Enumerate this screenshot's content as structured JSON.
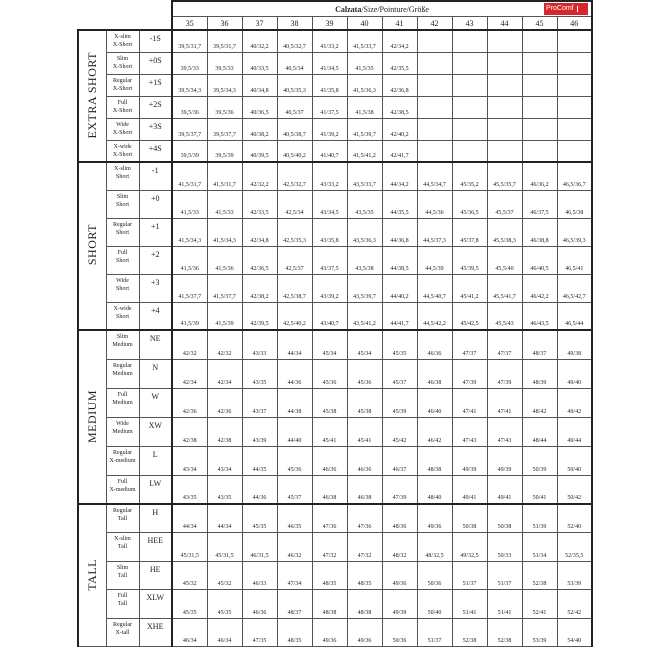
{
  "header": {
    "title_bold": "Calzata",
    "title_rest": "/Size/Pointure/Größe",
    "logo": "ProComf",
    "sizes": [
      "35",
      "36",
      "37",
      "38",
      "39",
      "40",
      "41",
      "42",
      "43",
      "44",
      "45",
      "46"
    ]
  },
  "accent_color": "#d8262e",
  "groups": [
    {
      "label": "EXTRA SHORT",
      "rows": [
        {
          "name": [
            "X-slim",
            "X-Short"
          ],
          "code": "-1S",
          "values": [
            "39,5/31,7",
            "39,5/31,7",
            "40/32,2",
            "40,5/32,7",
            "41/33,2",
            "41,5/33,7",
            "42/34,2",
            "",
            "",
            "",
            "",
            ""
          ]
        },
        {
          "name": [
            "Slim",
            "X-Short"
          ],
          "code": "+0S",
          "values": [
            "39,5/33",
            "39,5/33",
            "40/33,5",
            "40,5/34",
            "41/34,5",
            "41,5/35",
            "42/35,5",
            "",
            "",
            "",
            "",
            ""
          ]
        },
        {
          "name": [
            "Regular",
            "X-Short"
          ],
          "code": "+1S",
          "values": [
            "39,5/34,3",
            "39,5/34,3",
            "40/34,8",
            "40,5/35,3",
            "41/35,8",
            "41,5/36,3",
            "42/36,8",
            "",
            "",
            "",
            "",
            ""
          ]
        },
        {
          "name": [
            "Full",
            "X-Short"
          ],
          "code": "+2S",
          "values": [
            "39,5/36",
            "39,5/36",
            "40/36,5",
            "40,5/37",
            "41/37,5",
            "41,5/38",
            "42/38,5",
            "",
            "",
            "",
            "",
            ""
          ]
        },
        {
          "name": [
            "Wide",
            "X-Short"
          ],
          "code": "+3S",
          "values": [
            "39,5/37,7",
            "39,5/37,7",
            "40/38,2",
            "40,5/38,7",
            "41/39,2",
            "41,5/39,7",
            "42/40,2",
            "",
            "",
            "",
            "",
            ""
          ]
        },
        {
          "name": [
            "X-wide",
            "X-Short"
          ],
          "code": "+4S",
          "values": [
            "39,5/39",
            "39,5/39",
            "40/39,5",
            "40,5/40,2",
            "41/40,7",
            "41,5/41,2",
            "42/41,7",
            "",
            "",
            "",
            "",
            ""
          ]
        }
      ]
    },
    {
      "label": "SHORT",
      "rows": [
        {
          "name": [
            "X-slim",
            "Short"
          ],
          "code": "-1",
          "values": [
            "41,5/31,7",
            "41,5/31,7",
            "42/32,2",
            "42,5/32,7",
            "43/33,2",
            "43,5/33,7",
            "44/34,2",
            "44,5/34,7",
            "45/35,2",
            "45,5/35,7",
            "46/36,2",
            "46,5/36,7"
          ]
        },
        {
          "name": [
            "Slim",
            "Short"
          ],
          "code": "+0",
          "values": [
            "41,5/33",
            "41,5/33",
            "42/33,5",
            "42,5/34",
            "43/34,5",
            "43,5/35",
            "44/35,5",
            "44,5/36",
            "45/36,5",
            "45,5/37",
            "46/37,5",
            "46,5/38"
          ]
        },
        {
          "name": [
            "Regular",
            "Short"
          ],
          "code": "+1",
          "values": [
            "41,5/34,3",
            "41,5/34,3",
            "42/34,8",
            "42,5/35,3",
            "43/35,8",
            "43,5/36,3",
            "44/36,8",
            "44,5/37,3",
            "45/37,8",
            "45,5/38,3",
            "46/38,8",
            "46,5/39,3"
          ]
        },
        {
          "name": [
            "Full",
            "Short"
          ],
          "code": "+2",
          "values": [
            "41,5/36",
            "41,5/36",
            "42/36,5",
            "42,5/37",
            "43/37,5",
            "43,5/38",
            "44/38,5",
            "44,5/39",
            "45/39,5",
            "45,5/40",
            "46/40,5",
            "46,5/41"
          ]
        },
        {
          "name": [
            "Wide",
            "Short"
          ],
          "code": "+3",
          "values": [
            "41,5/37,7",
            "41,5/37,7",
            "42/38,2",
            "42,5/38,7",
            "43/39,2",
            "43,5/39,7",
            "44/40,2",
            "44,5/40,7",
            "45/41,2",
            "45,5/41,7",
            "46/42,2",
            "46,5/42,7"
          ]
        },
        {
          "name": [
            "X-wide",
            "Short"
          ],
          "code": "+4",
          "values": [
            "41,5/39",
            "41,5/39",
            "42/39,5",
            "42,5/40,2",
            "43/40,7",
            "43,5/41,2",
            "44/41,7",
            "44,5/42,2",
            "45/42,5",
            "45,5/43",
            "46/43,5",
            "46,5/44"
          ]
        }
      ]
    },
    {
      "label": "MEDIUM",
      "rows": [
        {
          "name": [
            "Slim",
            "Medium"
          ],
          "code": "NE",
          "values": [
            "42/32",
            "42/32",
            "43/33",
            "44/34",
            "45/34",
            "45/34",
            "45/35",
            "46/36",
            "47/37",
            "47/37",
            "48/37",
            "49/38"
          ]
        },
        {
          "name": [
            "Regular",
            "Medium"
          ],
          "code": "N",
          "values": [
            "42/34",
            "42/34",
            "43/35",
            "44/36",
            "45/36",
            "45/36",
            "45/37",
            "46/38",
            "47/39",
            "47/39",
            "48/39",
            "49/40"
          ]
        },
        {
          "name": [
            "Full",
            "Medium"
          ],
          "code": "W",
          "values": [
            "42/36",
            "42/36",
            "43/37",
            "44/38",
            "45/38",
            "45/38",
            "45/39",
            "46/40",
            "47/41",
            "47/41",
            "48/42",
            "49/42"
          ]
        },
        {
          "name": [
            "Wide",
            "Medium"
          ],
          "code": "XW",
          "values": [
            "42/38",
            "42/38",
            "43/39",
            "44/40",
            "45/41",
            "45/41",
            "45/42",
            "46/42",
            "47/43",
            "47/43",
            "48/44",
            "49/44"
          ]
        },
        {
          "name": [
            "Regular",
            "X-medium"
          ],
          "code": "L",
          "values": [
            "43/34",
            "43/34",
            "44/35",
            "45/36",
            "46/36",
            "46/36",
            "46/37",
            "48/38",
            "49/39",
            "49/39",
            "50/39",
            "50/40"
          ]
        },
        {
          "name": [
            "Full",
            "X-medium"
          ],
          "code": "LW",
          "values": [
            "43/35",
            "43/35",
            "44/36",
            "45/37",
            "46/38",
            "46/38",
            "47/39",
            "48/40",
            "49/41",
            "49/41",
            "50/41",
            "50/42"
          ]
        }
      ]
    },
    {
      "label": "TALL",
      "rows": [
        {
          "name": [
            "Regular",
            "Tall"
          ],
          "code": "H",
          "values": [
            "44/34",
            "44/34",
            "45/35",
            "46/35",
            "47/36",
            "47/36",
            "48/36",
            "49/36",
            "50/38",
            "50/38",
            "51/39",
            "52/40"
          ]
        },
        {
          "name": [
            "X-slim",
            "Tall"
          ],
          "code": "HEE",
          "values": [
            "45/31,5",
            "45/31,5",
            "46/31,5",
            "46/32",
            "47/32",
            "47/32",
            "48/32",
            "48/32,5",
            "49/32,5",
            "50/33",
            "51/34",
            "52/35,5"
          ]
        },
        {
          "name": [
            "Slim",
            "Tall"
          ],
          "code": "HE",
          "values": [
            "45/32",
            "45/32",
            "46/33",
            "47/34",
            "48/35",
            "48/35",
            "49/36",
            "50/36",
            "51/37",
            "51/37",
            "52/38",
            "53/39"
          ]
        },
        {
          "name": [
            "Full",
            "Tall"
          ],
          "code": "XLW",
          "values": [
            "45/35",
            "45/35",
            "46/36",
            "48/37",
            "48/38",
            "48/38",
            "49/39",
            "50/40",
            "51/41",
            "51/41",
            "52/41",
            "52/42"
          ]
        },
        {
          "name": [
            "Regular",
            "X-tall"
          ],
          "code": "XHE",
          "values": [
            "46/34",
            "46/34",
            "47/35",
            "48/35",
            "49/36",
            "49/36",
            "50/36",
            "51/37",
            "52/38",
            "52/38",
            "53/39",
            "54/40"
          ]
        }
      ]
    }
  ]
}
